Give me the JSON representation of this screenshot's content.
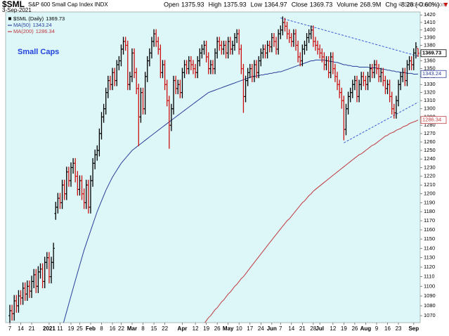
{
  "chart_data": {
    "type": "ohlc",
    "title": "$SML",
    "subtitle": "S&P 600 Small Cap Index INDX",
    "date": "3-Sep-2021",
    "credit": "© StockCharts.com",
    "annotation": "Small Caps",
    "quote": [
      {
        "label": "Open",
        "value": 1375.93
      },
      {
        "label": "High",
        "value": 1375.93
      },
      {
        "label": "Low",
        "value": 1364.97
      },
      {
        "label": "Close",
        "value": 1369.73
      },
      {
        "label": "Volume",
        "value": "268.9M"
      },
      {
        "label": "Chg",
        "value": "-8.28 (-0.60%)"
      }
    ],
    "name": "$SML (Daily)",
    "up_color": "#000000",
    "down_color": "#cc1111",
    "log": true,
    "grid": false,
    "ylim": [
      1063,
      1424
    ],
    "yticks": [
      1070,
      1080,
      1090,
      1100,
      1110,
      1120,
      1130,
      1140,
      1150,
      1160,
      1170,
      1180,
      1190,
      1200,
      1210,
      1220,
      1230,
      1240,
      1250,
      1260,
      1270,
      1280,
      1290,
      1300,
      1310,
      1320,
      1330,
      1340,
      1350,
      1360,
      1370,
      1380,
      1390,
      1400,
      1410,
      1420
    ],
    "categories": [
      "7",
      null,
      null,
      null,
      null,
      "14",
      null,
      null,
      null,
      null,
      "21",
      null,
      null,
      null,
      null,
      null,
      null,
      null,
      "2021",
      null,
      null,
      null,
      null,
      "11",
      null,
      null,
      null,
      null,
      "19",
      null,
      null,
      null,
      "25",
      null,
      null,
      null,
      null,
      "Feb",
      null,
      null,
      null,
      null,
      "8",
      null,
      null,
      null,
      null,
      "16",
      null,
      null,
      null,
      "22",
      null,
      null,
      null,
      null,
      "Mar",
      null,
      null,
      null,
      null,
      "8",
      null,
      null,
      null,
      null,
      "15",
      null,
      null,
      null,
      null,
      "22",
      null,
      null,
      null,
      null,
      null,
      null,
      null,
      "Apr",
      null,
      null,
      null,
      null,
      null,
      "12",
      null,
      null,
      null,
      null,
      "19",
      null,
      null,
      null,
      null,
      "26",
      null,
      null,
      null,
      null,
      "May",
      null,
      null,
      null,
      null,
      "10",
      null,
      null,
      null,
      null,
      "17",
      null,
      null,
      null,
      null,
      "24",
      null,
      null,
      null,
      null,
      "Jun",
      null,
      null,
      null,
      "7",
      null,
      null,
      null,
      null,
      "14",
      null,
      null,
      null,
      null,
      "21",
      null,
      null,
      null,
      null,
      "28",
      null,
      null,
      "Jul",
      null,
      null,
      null,
      null,
      null,
      "12",
      null,
      null,
      null,
      null,
      "19",
      null,
      null,
      null,
      null,
      "26",
      null,
      null,
      null,
      null,
      "Aug",
      null,
      null,
      null,
      null,
      "9",
      null,
      null,
      null,
      null,
      "16",
      null,
      null,
      null,
      null,
      "23",
      null,
      null,
      null,
      null,
      null,
      null,
      "Sep",
      null,
      null
    ],
    "open": [
      1070,
      1075,
      1072,
      1085,
      1080,
      1090,
      1088,
      1098,
      1092,
      1100,
      1095,
      1105,
      1112,
      1100,
      1115,
      1118,
      1105,
      1125,
      1130,
      1110,
      1125,
      1178,
      1185,
      1195,
      1190,
      1210,
      1200,
      1225,
      1215,
      1230,
      1235,
      1220,
      1205,
      1215,
      1200,
      1190,
      1210,
      1185,
      1215,
      1235,
      1245,
      1250,
      1270,
      1290,
      1300,
      1320,
      1335,
      1330,
      1345,
      1335,
      1355,
      1360,
      1375,
      1385,
      1380,
      1330,
      1340,
      1370,
      1345,
      1325,
      1290,
      1320,
      1300,
      1340,
      1360,
      1370,
      1385,
      1395,
      1385,
      1375,
      1345,
      1355,
      1330,
      1310,
      1280,
      1300,
      1335,
      1325,
      1330,
      1320,
      1345,
      1355,
      1350,
      1360,
      1355,
      1350,
      1345,
      1360,
      1370,
      1375,
      1380,
      1365,
      1350,
      1355,
      1350,
      1370,
      1385,
      1380,
      1375,
      1380,
      1370,
      1385,
      1375,
      1380,
      1390,
      1395,
      1375,
      1350,
      1315,
      1335,
      1345,
      1350,
      1340,
      1355,
      1345,
      1360,
      1370,
      1375,
      1370,
      1380,
      1378,
      1390,
      1385,
      1375,
      1395,
      1400,
      1410,
      1405,
      1395,
      1390,
      1385,
      1395,
      1380,
      1365,
      1360,
      1375,
      1380,
      1390,
      1395,
      1400,
      1385,
      1380,
      1375,
      1370,
      1365,
      1355,
      1360,
      1345,
      1365,
      1350,
      1340,
      1330,
      1320,
      1310,
      1275,
      1300,
      1315,
      1320,
      1330,
      1335,
      1315,
      1330,
      1340,
      1335,
      1330,
      1340,
      1350,
      1345,
      1355,
      1350,
      1340,
      1345,
      1335,
      1325,
      1330,
      1315,
      1300,
      1295,
      1310,
      1330,
      1340,
      1345,
      1335,
      1355,
      1360,
      1355,
      1370,
      1375.93
    ],
    "high": [
      1081,
      1081,
      1091,
      1091,
      1096,
      1096,
      1104,
      1104,
      1106,
      1106,
      1111,
      1118,
      1118,
      1121,
      1124,
      1124,
      1131,
      1136,
      1136,
      1131,
      1146,
      1191,
      1201,
      1201,
      1216,
      1216,
      1231,
      1231,
      1236,
      1241,
      1241,
      1226,
      1221,
      1221,
      1206,
      1216,
      1216,
      1221,
      1241,
      1251,
      1256,
      1276,
      1296,
      1306,
      1326,
      1341,
      1341,
      1351,
      1351,
      1361,
      1366,
      1381,
      1391,
      1391,
      1386,
      1346,
      1376,
      1376,
      1351,
      1331,
      1326,
      1326,
      1346,
      1366,
      1376,
      1391,
      1401,
      1401,
      1391,
      1381,
      1361,
      1361,
      1336,
      1316,
      1306,
      1341,
      1341,
      1336,
      1336,
      1351,
      1361,
      1361,
      1366,
      1366,
      1361,
      1356,
      1366,
      1376,
      1381,
      1386,
      1386,
      1371,
      1361,
      1361,
      1376,
      1391,
      1391,
      1386,
      1386,
      1386,
      1391,
      1391,
      1386,
      1396,
      1401,
      1401,
      1381,
      1356,
      1341,
      1351,
      1356,
      1356,
      1361,
      1361,
      1366,
      1376,
      1381,
      1381,
      1386,
      1386,
      1396,
      1396,
      1391,
      1401,
      1406,
      1418,
      1416,
      1411,
      1401,
      1396,
      1401,
      1401,
      1386,
      1371,
      1381,
      1386,
      1396,
      1401,
      1406,
      1406,
      1391,
      1386,
      1381,
      1376,
      1371,
      1366,
      1366,
      1371,
      1371,
      1356,
      1346,
      1336,
      1326,
      1316,
      1306,
      1321,
      1326,
      1336,
      1341,
      1341,
      1336,
      1346,
      1346,
      1341,
      1346,
      1356,
      1356,
      1361,
      1361,
      1356,
      1351,
      1351,
      1341,
      1336,
      1336,
      1321,
      1306,
      1316,
      1336,
      1346,
      1351,
      1351,
      1361,
      1366,
      1366,
      1376,
      1384,
      1375.93
    ],
    "low": [
      1063,
      1065,
      1065,
      1073,
      1073,
      1081,
      1081,
      1085,
      1085,
      1088,
      1088,
      1098,
      1093,
      1093,
      1108,
      1098,
      1098,
      1118,
      1103,
      1103,
      1118,
      1171,
      1178,
      1183,
      1183,
      1193,
      1193,
      1208,
      1208,
      1223,
      1213,
      1198,
      1198,
      1193,
      1183,
      1183,
      1178,
      1178,
      1208,
      1228,
      1238,
      1243,
      1263,
      1283,
      1293,
      1313,
      1323,
      1323,
      1328,
      1328,
      1348,
      1353,
      1368,
      1373,
      1323,
      1323,
      1333,
      1338,
      1318,
      1255,
      1283,
      1293,
      1293,
      1333,
      1353,
      1363,
      1378,
      1378,
      1368,
      1338,
      1338,
      1323,
      1303,
      1252,
      1273,
      1293,
      1318,
      1318,
      1313,
      1313,
      1338,
      1343,
      1343,
      1348,
      1343,
      1338,
      1338,
      1353,
      1363,
      1368,
      1358,
      1343,
      1343,
      1343,
      1343,
      1363,
      1373,
      1368,
      1368,
      1363,
      1363,
      1368,
      1368,
      1373,
      1383,
      1368,
      1343,
      1295,
      1308,
      1328,
      1338,
      1333,
      1333,
      1338,
      1338,
      1353,
      1363,
      1363,
      1363,
      1371,
      1371,
      1378,
      1368,
      1368,
      1388,
      1393,
      1398,
      1388,
      1383,
      1378,
      1378,
      1373,
      1358,
      1353,
      1353,
      1368,
      1373,
      1383,
      1388,
      1378,
      1373,
      1368,
      1363,
      1358,
      1348,
      1348,
      1338,
      1338,
      1343,
      1333,
      1323,
      1313,
      1300,
      1262,
      1268,
      1293,
      1308,
      1313,
      1323,
      1308,
      1308,
      1323,
      1328,
      1323,
      1323,
      1333,
      1338,
      1338,
      1343,
      1333,
      1333,
      1328,
      1318,
      1318,
      1308,
      1293,
      1288,
      1288,
      1303,
      1323,
      1333,
      1328,
      1328,
      1348,
      1348,
      1348,
      1363,
      1364.97
    ],
    "close": [
      1075,
      1072,
      1085,
      1080,
      1090,
      1088,
      1098,
      1092,
      1100,
      1095,
      1105,
      1112,
      1100,
      1115,
      1118,
      1105,
      1125,
      1130,
      1110,
      1125,
      1140,
      1185,
      1195,
      1190,
      1210,
      1200,
      1225,
      1215,
      1230,
      1235,
      1220,
      1205,
      1215,
      1200,
      1190,
      1210,
      1185,
      1215,
      1235,
      1245,
      1250,
      1270,
      1290,
      1300,
      1320,
      1335,
      1330,
      1345,
      1335,
      1355,
      1360,
      1375,
      1385,
      1380,
      1330,
      1340,
      1370,
      1345,
      1325,
      1290,
      1320,
      1300,
      1340,
      1360,
      1370,
      1385,
      1395,
      1385,
      1375,
      1345,
      1355,
      1330,
      1310,
      1280,
      1300,
      1335,
      1325,
      1330,
      1320,
      1345,
      1355,
      1350,
      1360,
      1355,
      1350,
      1345,
      1360,
      1370,
      1375,
      1380,
      1365,
      1350,
      1355,
      1350,
      1370,
      1385,
      1380,
      1375,
      1380,
      1370,
      1385,
      1375,
      1380,
      1390,
      1395,
      1375,
      1350,
      1315,
      1335,
      1345,
      1350,
      1340,
      1355,
      1345,
      1360,
      1370,
      1375,
      1370,
      1380,
      1378,
      1390,
      1385,
      1375,
      1395,
      1400,
      1410,
      1405,
      1395,
      1390,
      1385,
      1395,
      1380,
      1365,
      1360,
      1375,
      1380,
      1390,
      1395,
      1400,
      1385,
      1380,
      1375,
      1370,
      1365,
      1355,
      1360,
      1345,
      1365,
      1350,
      1340,
      1330,
      1320,
      1310,
      1275,
      1300,
      1315,
      1320,
      1330,
      1335,
      1315,
      1330,
      1340,
      1335,
      1330,
      1340,
      1350,
      1345,
      1355,
      1350,
      1340,
      1345,
      1335,
      1325,
      1330,
      1315,
      1300,
      1295,
      1310,
      1330,
      1340,
      1345,
      1335,
      1355,
      1360,
      1355,
      1370,
      1378,
      1369.73
    ],
    "overlays": [
      {
        "name": "MA(50)",
        "color": "#2a3f9a",
        "values": [
          null,
          null,
          null,
          null,
          null,
          null,
          null,
          null,
          null,
          null,
          null,
          null,
          null,
          null,
          null,
          null,
          null,
          null,
          null,
          null,
          null,
          null,
          null,
          null,
          1058,
          1066,
          1074,
          1082,
          1090,
          1098,
          1106,
          1114,
          1122,
          1130,
          1138,
          1145,
          1152,
          1159,
          1166,
          1173,
          1180,
          1186,
          1192,
          1198,
          1204,
          1209,
          1214,
          1219,
          1223,
          1227,
          1231,
          1235,
          1238,
          1241,
          1244,
          1247,
          1250,
          1252,
          1254,
          1256,
          1258,
          1260,
          1262,
          1264,
          1266,
          1268,
          1270,
          1272,
          1274,
          1276,
          1278,
          1280,
          1282,
          1284,
          1286,
          1288,
          1290,
          1292,
          1294,
          1296,
          1298,
          1300,
          1302,
          1304,
          1306,
          1308,
          1310,
          1312,
          1314,
          1316,
          1318,
          1320,
          1321,
          1322,
          1323,
          1324,
          1325,
          1326,
          1327,
          1328,
          1329,
          1330,
          1331,
          1332,
          1333,
          1334,
          1335,
          1336,
          1337,
          1338,
          1339,
          1340,
          1340,
          1341,
          1341,
          1342,
          1342,
          1343,
          1343,
          1344,
          1344,
          1345,
          1345,
          1346,
          1346,
          1347,
          1348,
          1349,
          1350,
          1351,
          1352,
          1353,
          1354,
          1355,
          1356,
          1357,
          1358,
          1359,
          1360,
          1360,
          1361,
          1361,
          1361,
          1361,
          1361,
          1360,
          1360,
          1359,
          1359,
          1358,
          1358,
          1357,
          1356,
          1355,
          1355,
          1354,
          1354,
          1353,
          1353,
          1353,
          1352,
          1352,
          1352,
          1352,
          1352,
          1351,
          1351,
          1351,
          1351,
          1350,
          1350,
          1349,
          1349,
          1348,
          1348,
          1347,
          1347,
          1346,
          1346,
          1345,
          1345,
          1345,
          1344,
          1344,
          1344,
          1343,
          1343,
          1343.24
        ]
      },
      {
        "name": "MA(200)",
        "color": "#c0393d",
        "values": [
          null,
          null,
          null,
          null,
          null,
          null,
          null,
          null,
          null,
          null,
          null,
          null,
          null,
          null,
          null,
          null,
          null,
          null,
          null,
          null,
          null,
          null,
          null,
          null,
          null,
          null,
          null,
          null,
          null,
          null,
          null,
          null,
          null,
          null,
          null,
          null,
          null,
          null,
          null,
          null,
          null,
          null,
          null,
          null,
          null,
          null,
          null,
          null,
          null,
          null,
          null,
          null,
          null,
          null,
          null,
          null,
          null,
          null,
          null,
          null,
          null,
          null,
          null,
          null,
          null,
          null,
          null,
          null,
          null,
          null,
          null,
          null,
          null,
          null,
          null,
          null,
          null,
          null,
          null,
          null,
          null,
          null,
          null,
          null,
          null,
          null,
          null,
          null,
          null,
          1062,
          1065,
          1068,
          1070,
          1073,
          1076,
          1078,
          1081,
          1084,
          1086,
          1089,
          1092,
          1094,
          1097,
          1100,
          1102,
          1105,
          1108,
          1110,
          1113,
          1116,
          1119,
          1122,
          1125,
          1128,
          1131,
          1134,
          1137,
          1140,
          1143,
          1146,
          1149,
          1152,
          1155,
          1158,
          1161,
          1164,
          1167,
          1170,
          1172,
          1175,
          1178,
          1181,
          1184,
          1187,
          1190,
          1192,
          1195,
          1198,
          1200,
          1203,
          1205,
          1207,
          1209,
          1211,
          1213,
          1215,
          1217,
          1219,
          1221,
          1223,
          1225,
          1227,
          1229,
          1231,
          1233,
          1235,
          1237,
          1239,
          1241,
          1243,
          1245,
          1246,
          1248,
          1250,
          1252,
          1254,
          1256,
          1257,
          1259,
          1261,
          1263,
          1265,
          1267,
          1268,
          1270,
          1271,
          1272,
          1274,
          1275,
          1276,
          1278,
          1279,
          1280,
          1282,
          1283,
          1284,
          1285,
          1286.34
        ]
      }
    ],
    "trendlines": [
      {
        "color": "#3a5bd8",
        "x": [
          124,
          187
        ],
        "values": [
          1416,
          1366
        ]
      },
      {
        "color": "#3a5bd8",
        "x": [
          153,
          187
        ],
        "values": [
          1259,
          1308
        ]
      }
    ]
  }
}
